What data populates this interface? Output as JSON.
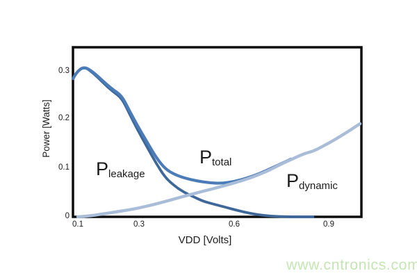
{
  "watermark": {
    "text": "www.cntronics.com",
    "color": "#c5e5b4"
  },
  "chart_data": {
    "type": "line",
    "title": "",
    "xlabel": "VDD [Volts]",
    "ylabel": "Power [Watts]",
    "xlim": [
      0.0845,
      1.0045
    ],
    "ylim": [
      0,
      0.3496
    ],
    "grid": false,
    "legend": "none (in-plot text annotations)",
    "border_color": "#0d0d0d",
    "x_ticks": {
      "values": [
        0.1,
        0.3,
        0.6,
        0.9
      ],
      "labels": [
        "0.1",
        "0.3",
        "0.6",
        "0.9"
      ]
    },
    "y_ticks": {
      "values": [
        0,
        0.1,
        0.2,
        0.3
      ],
      "labels": [
        "0",
        "0.1",
        "0.2",
        "0.3"
      ]
    },
    "series": [
      {
        "name": "P_leakage",
        "color": "#3d6899",
        "stroke_width": 3.8,
        "points": [
          [
            0.085,
            0.285
          ],
          [
            0.095,
            0.298
          ],
          [
            0.12,
            0.31
          ],
          [
            0.15,
            0.296
          ],
          [
            0.18,
            0.277
          ],
          [
            0.21,
            0.259
          ],
          [
            0.24,
            0.245
          ],
          [
            0.265,
            0.212
          ],
          [
            0.29,
            0.18
          ],
          [
            0.32,
            0.145
          ],
          [
            0.35,
            0.11
          ],
          [
            0.38,
            0.08
          ],
          [
            0.41,
            0.063
          ],
          [
            0.44,
            0.05
          ],
          [
            0.47,
            0.041
          ],
          [
            0.5,
            0.032
          ],
          [
            0.54,
            0.025
          ],
          [
            0.57,
            0.02
          ],
          [
            0.61,
            0.013
          ],
          [
            0.65,
            0.007
          ],
          [
            0.69,
            0.003
          ],
          [
            0.73,
            0.001
          ],
          [
            0.78,
            0.0
          ],
          [
            0.85,
            0.0
          ]
        ]
      },
      {
        "name": "P_total",
        "color": "#4b7cb8",
        "stroke_width": 4.2,
        "points": [
          [
            0.085,
            0.285
          ],
          [
            0.095,
            0.298
          ],
          [
            0.12,
            0.31
          ],
          [
            0.15,
            0.298
          ],
          [
            0.18,
            0.28
          ],
          [
            0.21,
            0.263
          ],
          [
            0.24,
            0.25
          ],
          [
            0.265,
            0.218
          ],
          [
            0.29,
            0.188
          ],
          [
            0.32,
            0.155
          ],
          [
            0.35,
            0.122
          ],
          [
            0.38,
            0.098
          ],
          [
            0.41,
            0.087
          ],
          [
            0.44,
            0.08
          ],
          [
            0.48,
            0.074
          ],
          [
            0.52,
            0.07
          ],
          [
            0.56,
            0.069
          ],
          [
            0.6,
            0.073
          ],
          [
            0.64,
            0.08
          ],
          [
            0.68,
            0.089
          ],
          [
            0.72,
            0.101
          ],
          [
            0.75,
            0.11
          ],
          [
            0.78,
            0.119
          ]
        ]
      },
      {
        "name": "P_dynamic",
        "color": "#a9bcd8",
        "stroke_width": 4.4,
        "points": [
          [
            0.1,
            0.0
          ],
          [
            0.14,
            0.002
          ],
          [
            0.18,
            0.006
          ],
          [
            0.22,
            0.01
          ],
          [
            0.26,
            0.014
          ],
          [
            0.3,
            0.019
          ],
          [
            0.34,
            0.025
          ],
          [
            0.38,
            0.032
          ],
          [
            0.42,
            0.039
          ],
          [
            0.46,
            0.046
          ],
          [
            0.5,
            0.053
          ],
          [
            0.55,
            0.061
          ],
          [
            0.6,
            0.07
          ],
          [
            0.65,
            0.08
          ],
          [
            0.7,
            0.093
          ],
          [
            0.74,
            0.106
          ],
          [
            0.78,
            0.118
          ],
          [
            0.82,
            0.13
          ],
          [
            0.85,
            0.135
          ],
          [
            0.88,
            0.145
          ],
          [
            0.92,
            0.159
          ],
          [
            0.96,
            0.175
          ],
          [
            1.0,
            0.192
          ]
        ]
      }
    ],
    "annotations": [
      {
        "main": "P",
        "sub": "leakage"
      },
      {
        "main": "P",
        "sub": "total"
      },
      {
        "main": "P",
        "sub": "dynamic"
      }
    ]
  }
}
